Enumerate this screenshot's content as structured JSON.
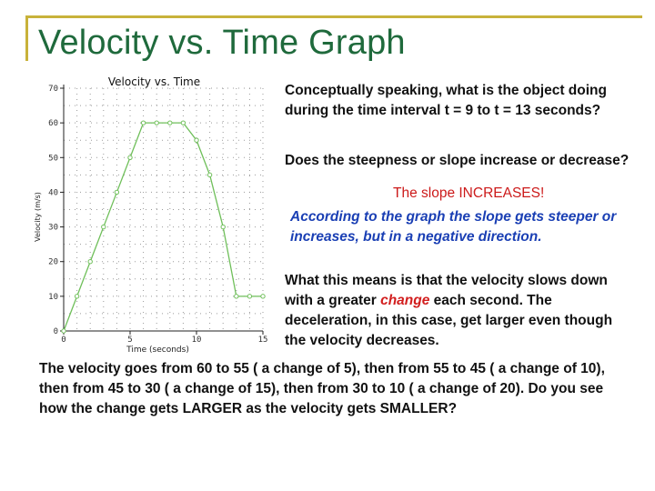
{
  "slide": {
    "title": "Velocity vs. Time Graph",
    "question1": "Conceptually speaking, what is the object doing during the time interval t = 9 to t = 13 seconds?",
    "question2": "Does the steepness or slope increase or decrease?",
    "answer": "The slope INCREASES!",
    "explanation": "According to the graph the slope gets steeper or increases, but in a negative direction.",
    "meaning_before": "What this means is that the velocity slows down with a greater ",
    "meaning_highlight": "change",
    "meaning_after": " each second. The deceleration, in this case, get larger even though the velocity decreases.",
    "bottom_text": "The velocity goes from 60 to 55 ( a change of 5), then from 55 to 45 ( a change of 10), then from 45 to 30 ( a change of 15), then from 30 to 10 ( a change of 20). Do you see how the change gets LARGER as the velocity gets SMALLER?"
  },
  "colors": {
    "title": "#1f6a3c",
    "frame": "#c8b23a",
    "series": "#6fbf5a",
    "answer": "#cc1a1a",
    "explanation": "#1a3fb4"
  },
  "chart_data": {
    "type": "line",
    "title": "Velocity vs. Time",
    "xlabel": "Time (seconds)",
    "ylabel": "Velocity (m/s)",
    "xlim": [
      0,
      15
    ],
    "ylim": [
      0,
      70
    ],
    "x_ticks": [
      0,
      5,
      10,
      15
    ],
    "y_ticks": [
      0,
      10,
      20,
      30,
      40,
      50,
      60,
      70
    ],
    "grid": "dotted",
    "series": [
      {
        "x": [
          0,
          1,
          2,
          3,
          4,
          5,
          6,
          7,
          8,
          9,
          10,
          11,
          12,
          13,
          14,
          15
        ],
        "y": [
          0,
          10,
          20,
          30,
          40,
          50,
          60,
          60,
          60,
          60,
          55,
          45,
          30,
          10,
          10,
          10
        ]
      }
    ]
  }
}
